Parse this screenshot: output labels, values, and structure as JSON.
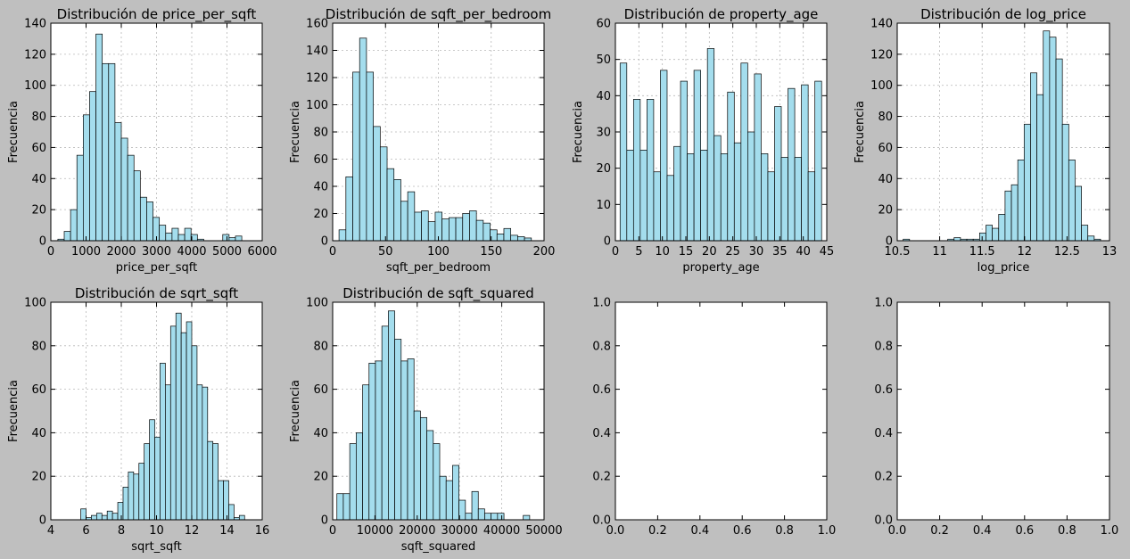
{
  "chart_data": [
    {
      "type": "bar",
      "title": "Distribución de price_per_sqft",
      "xlabel": "price_per_sqft",
      "ylabel": "Frecuencia",
      "xlim": [
        0,
        6000
      ],
      "ylim": [
        0,
        140
      ],
      "xticks": [
        0,
        1000,
        2000,
        3000,
        4000,
        5000,
        6000
      ],
      "yticks": [
        0,
        20,
        40,
        60,
        80,
        100,
        120,
        140
      ],
      "grid": true,
      "bin_start": 200,
      "bin_width": 180,
      "values": [
        1,
        6,
        20,
        55,
        81,
        96,
        133,
        114,
        114,
        76,
        66,
        55,
        45,
        28,
        25,
        15,
        10,
        5,
        8,
        4,
        8,
        4,
        1,
        0,
        0,
        0,
        4,
        2,
        3,
        0
      ]
    },
    {
      "type": "bar",
      "title": "Distribución de sqft_per_bedroom",
      "xlabel": "sqft_per_bedroom",
      "ylabel": "Frecuencia",
      "xlim": [
        0,
        200
      ],
      "ylim": [
        0,
        160
      ],
      "xticks": [
        0,
        50,
        100,
        150,
        200
      ],
      "yticks": [
        0,
        20,
        40,
        60,
        80,
        100,
        120,
        140,
        160
      ],
      "grid": true,
      "bin_start": 6,
      "bin_width": 6.5,
      "values": [
        8,
        47,
        124,
        149,
        124,
        84,
        69,
        53,
        45,
        29,
        36,
        21,
        22,
        14,
        21,
        16,
        17,
        17,
        20,
        22,
        15,
        13,
        8,
        5,
        9,
        4,
        3,
        2
      ]
    },
    {
      "type": "bar",
      "title": "Distribución de property_age",
      "xlabel": "property_age",
      "ylabel": "Frecuencia",
      "xlim": [
        0,
        45
      ],
      "ylim": [
        0,
        60
      ],
      "xticks": [
        0,
        5,
        10,
        15,
        20,
        25,
        30,
        35,
        40,
        45
      ],
      "yticks": [
        0,
        10,
        20,
        30,
        40,
        50,
        60
      ],
      "grid": true,
      "bin_start": 1,
      "bin_width": 1.43,
      "values": [
        49,
        25,
        39,
        25,
        39,
        19,
        47,
        18,
        26,
        44,
        24,
        47,
        25,
        53,
        29,
        24,
        41,
        27,
        49,
        30,
        46,
        24,
        19,
        37,
        23,
        42,
        23,
        43,
        19,
        44
      ]
    },
    {
      "type": "bar",
      "title": "Distribución de log_price",
      "xlabel": "log_price",
      "ylabel": "Frecuencia",
      "xlim": [
        10.5,
        13.0
      ],
      "ylim": [
        0,
        140
      ],
      "xticks": [
        10.5,
        11.0,
        11.5,
        12.0,
        12.5,
        13.0
      ],
      "yticks": [
        0,
        20,
        40,
        60,
        80,
        100,
        120,
        140
      ],
      "grid": true,
      "bin_start": 10.57,
      "bin_width": 0.075,
      "values": [
        1,
        0,
        0,
        0,
        0,
        0,
        0,
        1,
        2,
        1,
        1,
        1,
        5,
        10,
        8,
        17,
        32,
        36,
        52,
        75,
        108,
        94,
        135,
        131,
        117,
        75,
        52,
        35,
        10,
        3,
        1
      ]
    },
    {
      "type": "bar",
      "title": "Distribución de sqrt_sqft",
      "xlabel": "sqrt_sqft",
      "ylabel": "Frecuencia",
      "xlim": [
        4,
        16
      ],
      "ylim": [
        0,
        100
      ],
      "xticks": [
        4,
        6,
        8,
        10,
        12,
        14,
        16
      ],
      "yticks": [
        0,
        20,
        40,
        60,
        80,
        100
      ],
      "grid": true,
      "bin_start": 5.7,
      "bin_width": 0.3,
      "values": [
        5,
        1,
        2,
        3,
        2,
        4,
        3,
        8,
        15,
        22,
        21,
        26,
        35,
        46,
        38,
        72,
        62,
        89,
        95,
        86,
        91,
        80,
        62,
        61,
        36,
        35,
        18,
        18,
        7,
        1,
        2
      ]
    },
    {
      "type": "bar",
      "title": "Distribución de sqft_squared",
      "xlabel": "sqft_squared",
      "ylabel": "Frecuencia",
      "xlim": [
        0,
        50000
      ],
      "ylim": [
        0,
        100
      ],
      "xticks": [
        0,
        10000,
        20000,
        30000,
        40000,
        50000
      ],
      "yticks": [
        0,
        20,
        40,
        60,
        80,
        100
      ],
      "grid": true,
      "bin_start": 1000,
      "bin_width": 1520,
      "values": [
        12,
        12,
        35,
        40,
        62,
        72,
        73,
        89,
        96,
        83,
        73,
        74,
        50,
        47,
        41,
        35,
        20,
        18,
        25,
        9,
        3,
        13,
        5,
        3,
        3,
        3,
        0,
        0,
        0,
        2
      ]
    },
    {
      "type": "bar",
      "title": "",
      "xlabel": "",
      "ylabel": "",
      "xlim": [
        0.0,
        1.0
      ],
      "ylim": [
        0.0,
        1.0
      ],
      "xticks": [
        "0.0",
        "0.2",
        "0.4",
        "0.6",
        "0.8",
        "1.0"
      ],
      "yticks": [
        "0.0",
        "0.2",
        "0.4",
        "0.6",
        "0.8",
        "1.0"
      ],
      "grid": false,
      "values": []
    },
    {
      "type": "bar",
      "title": "",
      "xlabel": "",
      "ylabel": "",
      "xlim": [
        0.0,
        1.0
      ],
      "ylim": [
        0.0,
        1.0
      ],
      "xticks": [
        "0.0",
        "0.2",
        "0.4",
        "0.6",
        "0.8",
        "1.0"
      ],
      "yticks": [
        "0.0",
        "0.2",
        "0.4",
        "0.6",
        "0.8",
        "1.0"
      ],
      "grid": false,
      "values": []
    }
  ]
}
